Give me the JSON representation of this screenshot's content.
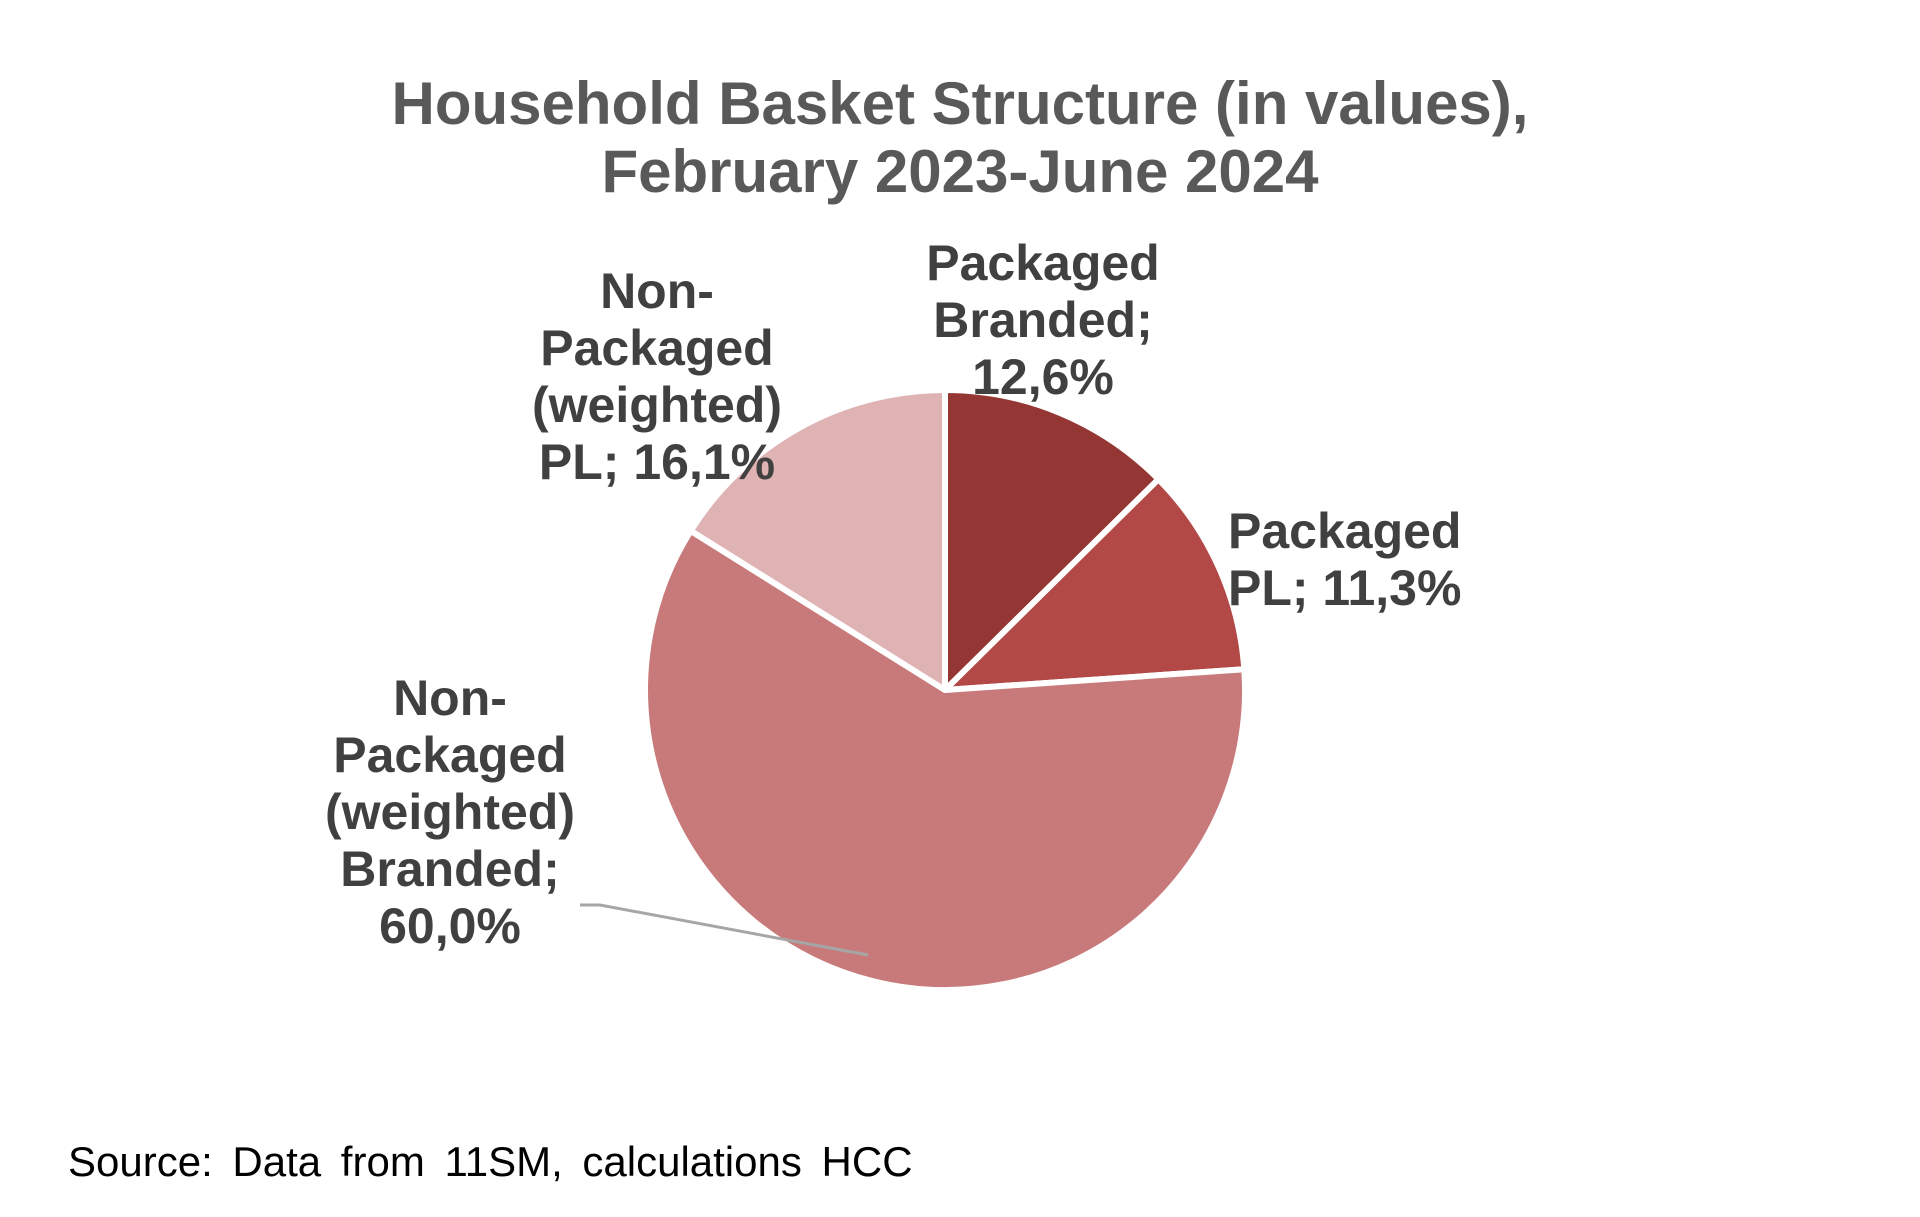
{
  "chart_data": {
    "type": "pie",
    "title": "Household Basket Structure (in values),",
    "subtitle": "February 2023-June 2024",
    "start_angle_deg": 0,
    "direction": "clockwise",
    "slices": [
      {
        "label_lines": [
          "Packaged",
          "Branded;",
          "12,6%"
        ],
        "value": 12.6,
        "color": "#943634"
      },
      {
        "label_lines": [
          "Packaged",
          "PL; 11,3%"
        ],
        "value": 11.3,
        "color": "#b24946"
      },
      {
        "label_lines": [
          "Non-",
          "Packaged",
          "(weighted)",
          "Branded;",
          "60,0%"
        ],
        "value": 60.0,
        "color": "#c87a7a"
      },
      {
        "label_lines": [
          "Non-",
          "Packaged",
          "(weighted)",
          "PL; 16,1%"
        ],
        "value": 16.1,
        "color": "#dfb3b3"
      }
    ],
    "slice_border_color": "#ffffff",
    "leader_line_color": "#a6a6a6"
  },
  "source_note": "Source: Data from 11SM, calculations HCC"
}
